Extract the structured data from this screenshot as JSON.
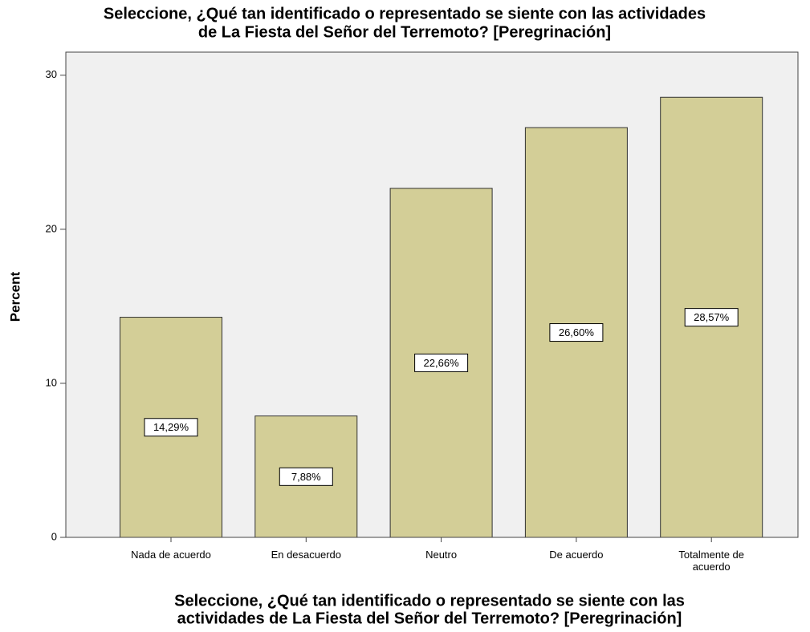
{
  "chart_data": {
    "type": "bar",
    "title": [
      "Seleccione, ¿Qué tan identificado o representado se siente con las actividades",
      "de La Fiesta del Señor del Terremoto? [Peregrinación]"
    ],
    "x_label": [
      "Seleccione, ¿Qué tan identificado o representado se siente con las",
      "actividades de La Fiesta del Señor del Terremoto? [Peregrinación]"
    ],
    "y_label": "Percent",
    "categories": [
      "Nada de acuerdo",
      "En desacuerdo",
      "Neutro",
      "De acuerdo",
      "Totalmente de acuerdo"
    ],
    "values": [
      14.29,
      7.88,
      22.66,
      26.6,
      28.57
    ],
    "value_labels": [
      "14,29%",
      "7,88%",
      "22,66%",
      "26,60%",
      "28,57%"
    ],
    "color": "#d3ce97",
    "ylim": [
      0,
      31.5
    ],
    "yticks": [
      0,
      10,
      20,
      30
    ],
    "grid": false
  }
}
